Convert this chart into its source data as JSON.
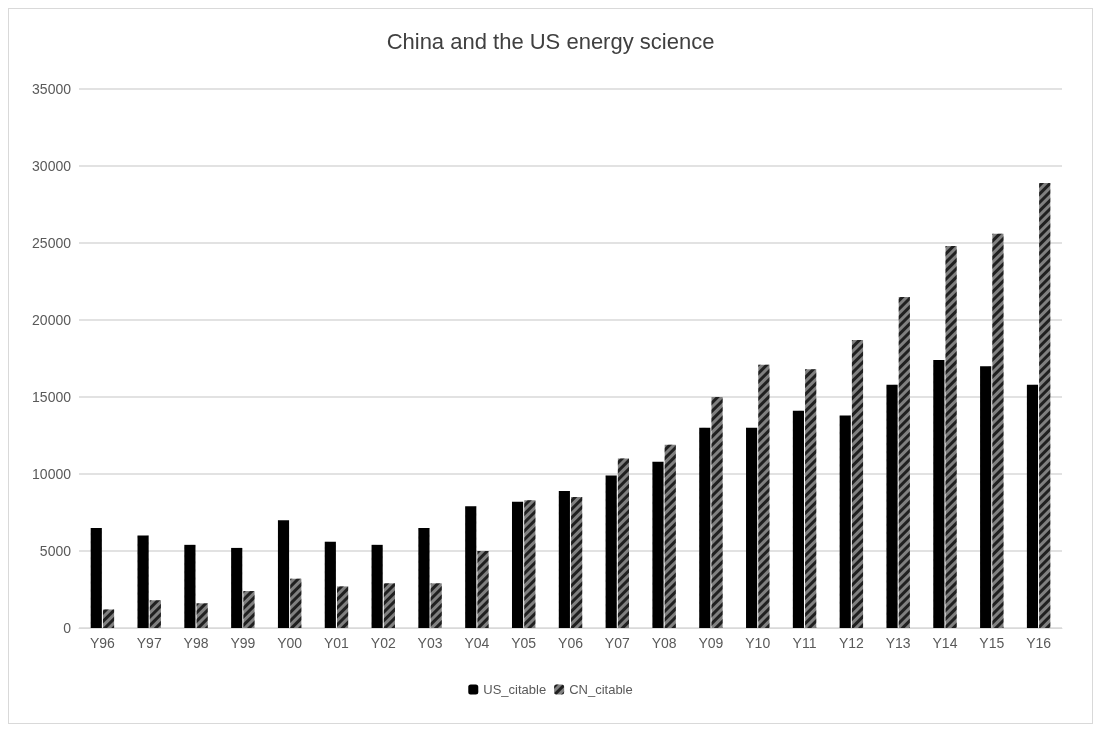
{
  "chart_data": {
    "type": "bar",
    "title": "China and the US energy science",
    "categories": [
      "Y96",
      "Y97",
      "Y98",
      "Y99",
      "Y00",
      "Y01",
      "Y02",
      "Y03",
      "Y04",
      "Y05",
      "Y06",
      "Y07",
      "Y08",
      "Y09",
      "Y10",
      "Y11",
      "Y12",
      "Y13",
      "Y14",
      "Y15",
      "Y16"
    ],
    "series": [
      {
        "name": "US_citable",
        "color": "#000000",
        "values": [
          6500,
          6000,
          5400,
          5200,
          7000,
          5600,
          5400,
          6500,
          7900,
          8200,
          8900,
          9900,
          10800,
          13000,
          13000,
          14100,
          13800,
          15800,
          17400,
          17000,
          15800
        ]
      },
      {
        "name": "CN_citable",
        "color": "#808080",
        "values": [
          1200,
          1800,
          1600,
          2400,
          3200,
          2700,
          2900,
          2900,
          5000,
          8300,
          8500,
          11000,
          11900,
          15000,
          17100,
          16800,
          18700,
          21500,
          24800,
          25600,
          28900
        ]
      }
    ],
    "ylim": [
      0,
      35000
    ],
    "yticks": [
      0,
      5000,
      10000,
      15000,
      20000,
      25000,
      30000,
      35000
    ],
    "grid": "y",
    "legend": "bottom"
  }
}
